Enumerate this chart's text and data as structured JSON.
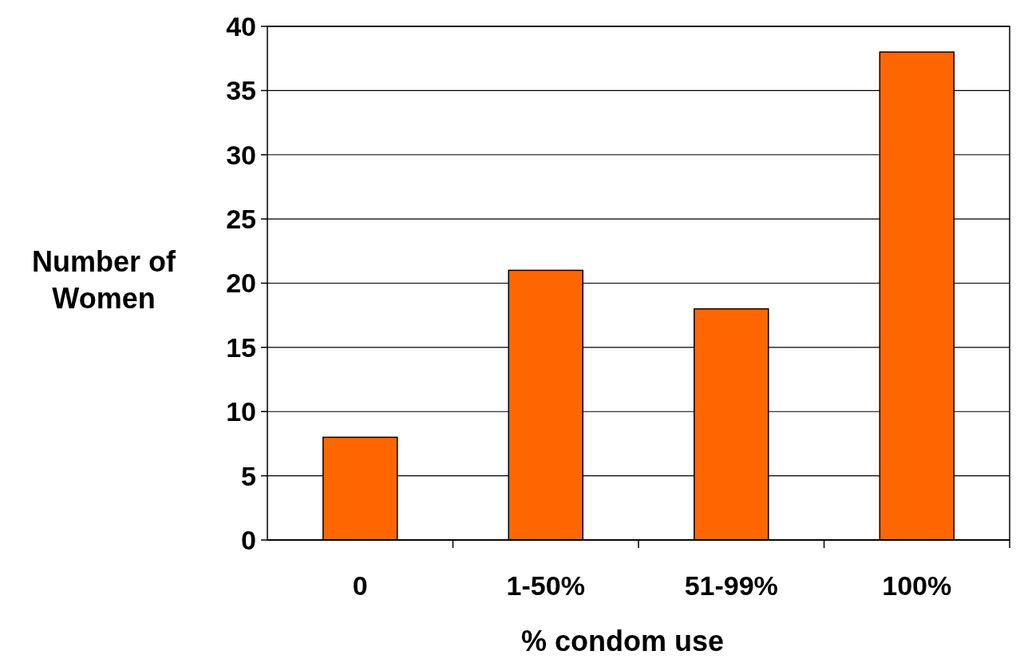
{
  "chart_data": {
    "type": "bar",
    "xlabel": "% condom use",
    "ylabel": "Number of Women",
    "categories": [
      "0",
      "1-50%",
      "51-99%",
      "100%"
    ],
    "values": [
      8,
      21,
      18,
      38
    ],
    "color": "#ff6600",
    "ylim": [
      0,
      40
    ],
    "yticks": [
      0,
      5,
      10,
      15,
      20,
      25,
      30,
      35,
      40
    ],
    "grid": "y"
  }
}
